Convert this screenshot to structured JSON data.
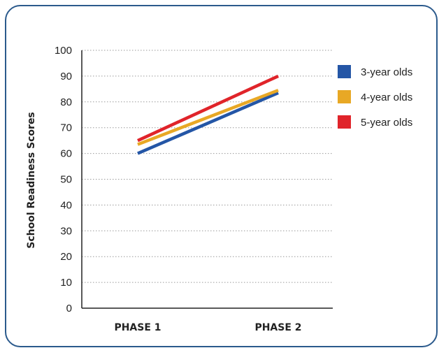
{
  "chart_data": {
    "type": "line",
    "title": "",
    "xlabel": "",
    "ylabel": "School Readiness Scores",
    "categories": [
      "PHASE 1",
      "PHASE 2"
    ],
    "ylim": [
      0,
      100
    ],
    "yticks": [
      "0",
      "10",
      "20",
      "30",
      "40",
      "50",
      "60",
      "70",
      "80",
      "90",
      "100"
    ],
    "grid": "horizontal dotted",
    "legend_position": "right",
    "series": [
      {
        "name": "3-year olds",
        "color": "#2456a6",
        "values": [
          60,
          83.5
        ]
      },
      {
        "name": "4-year olds",
        "color": "#e8a825",
        "values": [
          63.5,
          84.5
        ]
      },
      {
        "name": "5-year olds",
        "color": "#e0242a",
        "values": [
          65,
          90
        ]
      }
    ]
  }
}
